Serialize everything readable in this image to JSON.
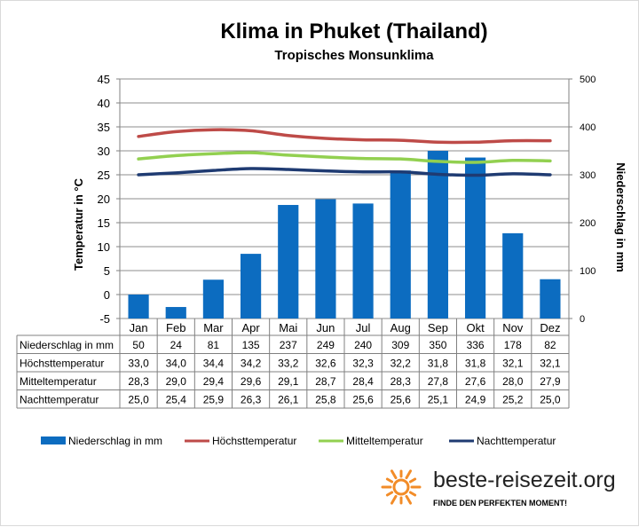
{
  "header": {
    "title": "Klima in Phuket (Thailand)",
    "subtitle": "Tropisches Monsunklima"
  },
  "chart_data": {
    "type": "bar",
    "title": "Klima in Phuket (Thailand)",
    "subtitle": "Tropisches Monsunklima",
    "categories": [
      "Jan",
      "Feb",
      "Mar",
      "Apr",
      "Mai",
      "Jun",
      "Jul",
      "Aug",
      "Sep",
      "Okt",
      "Nov",
      "Dez"
    ],
    "y_left": {
      "label": "Temperatur in °C",
      "range": [
        -5,
        45
      ],
      "ticks": [
        "45",
        "40",
        "35",
        "30",
        "25",
        "20",
        "15",
        "10",
        "5",
        "0",
        "-5"
      ]
    },
    "y_right": {
      "label": "Niederschlag in mm",
      "range": [
        0,
        500
      ],
      "ticks": [
        "500",
        "400",
        "300",
        "200",
        "100",
        "0"
      ]
    },
    "grid": true,
    "legend_position": "bottom",
    "series": [
      {
        "name": "Niederschlag in mm",
        "type": "bar",
        "axis": "right",
        "color": "#0c6cc0",
        "values": [
          50,
          24,
          81,
          135,
          237,
          249,
          240,
          309,
          350,
          336,
          178,
          82
        ],
        "display": [
          "50",
          "24",
          "81",
          "135",
          "237",
          "249",
          "240",
          "309",
          "350",
          "336",
          "178",
          "82"
        ]
      },
      {
        "name": "Höchsttemperatur",
        "type": "line",
        "axis": "left",
        "color": "#be4b48",
        "values": [
          33.0,
          34.0,
          34.4,
          34.2,
          33.2,
          32.6,
          32.3,
          32.2,
          31.8,
          31.8,
          32.1,
          32.1
        ],
        "display": [
          "33,0",
          "34,0",
          "34,4",
          "34,2",
          "33,2",
          "32,6",
          "32,3",
          "32,2",
          "31,8",
          "31,8",
          "32,1",
          "32,1"
        ]
      },
      {
        "name": "Mitteltemperatur",
        "type": "line",
        "axis": "left",
        "color": "#92d050",
        "values": [
          28.3,
          29.0,
          29.4,
          29.6,
          29.1,
          28.7,
          28.4,
          28.3,
          27.8,
          27.6,
          28.0,
          27.9
        ],
        "display": [
          "28,3",
          "29,0",
          "29,4",
          "29,6",
          "29,1",
          "28,7",
          "28,4",
          "28,3",
          "27,8",
          "27,6",
          "28,0",
          "27,9"
        ]
      },
      {
        "name": "Nachttemperatur",
        "type": "line",
        "axis": "left",
        "color": "#1f3b72",
        "values": [
          25.0,
          25.4,
          25.9,
          26.3,
          26.1,
          25.8,
          25.6,
          25.6,
          25.1,
          24.9,
          25.2,
          25.0
        ],
        "display": [
          "25,0",
          "25,4",
          "25,9",
          "26,3",
          "26,1",
          "25,8",
          "25,6",
          "25,6",
          "25,1",
          "24,9",
          "25,2",
          "25,0"
        ]
      }
    ]
  },
  "branding": {
    "site": "beste-reisezeit.org",
    "tagline": "FINDE DEN PERFEKTEN MOMENT!",
    "logo_icon": "sun-icon",
    "logo_color": "#f28c28"
  }
}
